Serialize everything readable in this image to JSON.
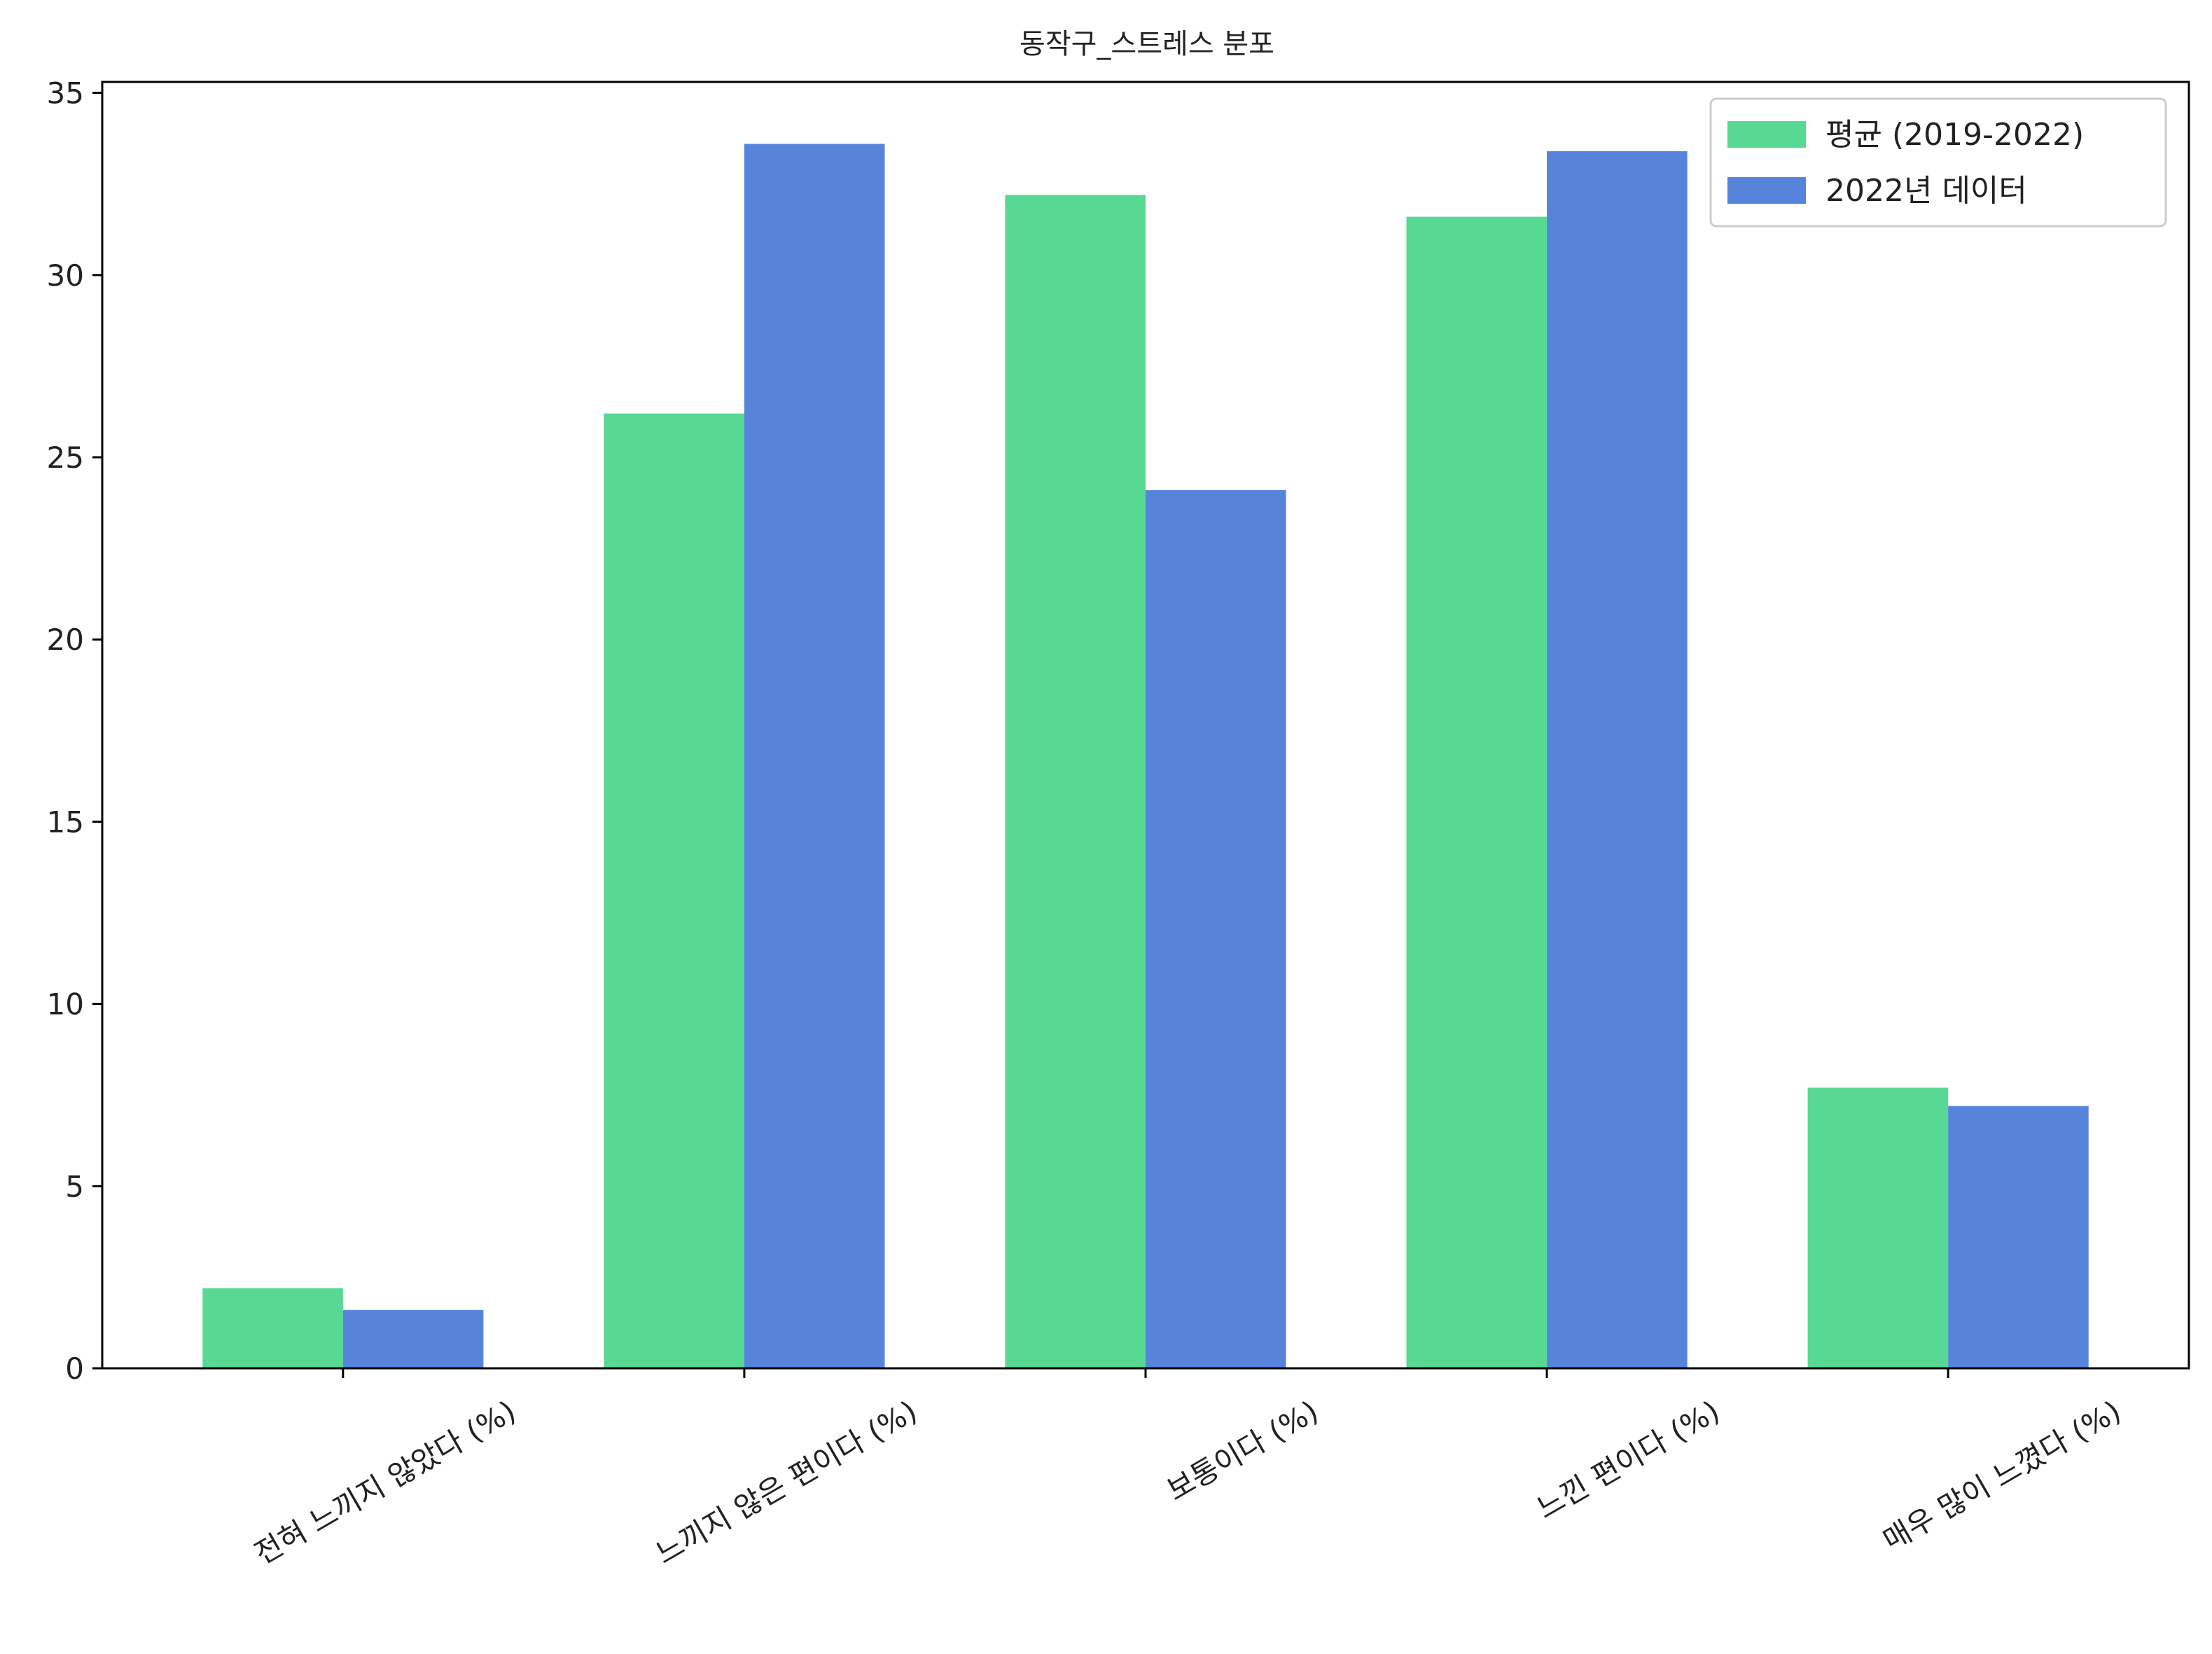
{
  "chart_data": {
    "type": "bar",
    "title": "동작구_스트레스 분포",
    "xlabel": "",
    "ylabel": "",
    "categories": [
      "전혀 느끼지 않았다 (%)",
      "느끼지 않은 편이다 (%)",
      "보통이다 (%)",
      "느낀 편이다 (%)",
      "매우 많이 느꼈다 (%)"
    ],
    "series": [
      {
        "name": "평균 (2019-2022)",
        "color": "#57d994",
        "values": [
          2.2,
          26.2,
          32.2,
          31.6,
          7.7
        ]
      },
      {
        "name": "2022년 데이터",
        "color": "#5784db",
        "values": [
          1.6,
          33.6,
          24.1,
          33.4,
          7.2
        ]
      }
    ],
    "ylim": [
      0,
      35.3
    ],
    "yticks": [
      0,
      5,
      10,
      15,
      20,
      25,
      30,
      35
    ],
    "legend_position": "top-right",
    "grid": false
  }
}
